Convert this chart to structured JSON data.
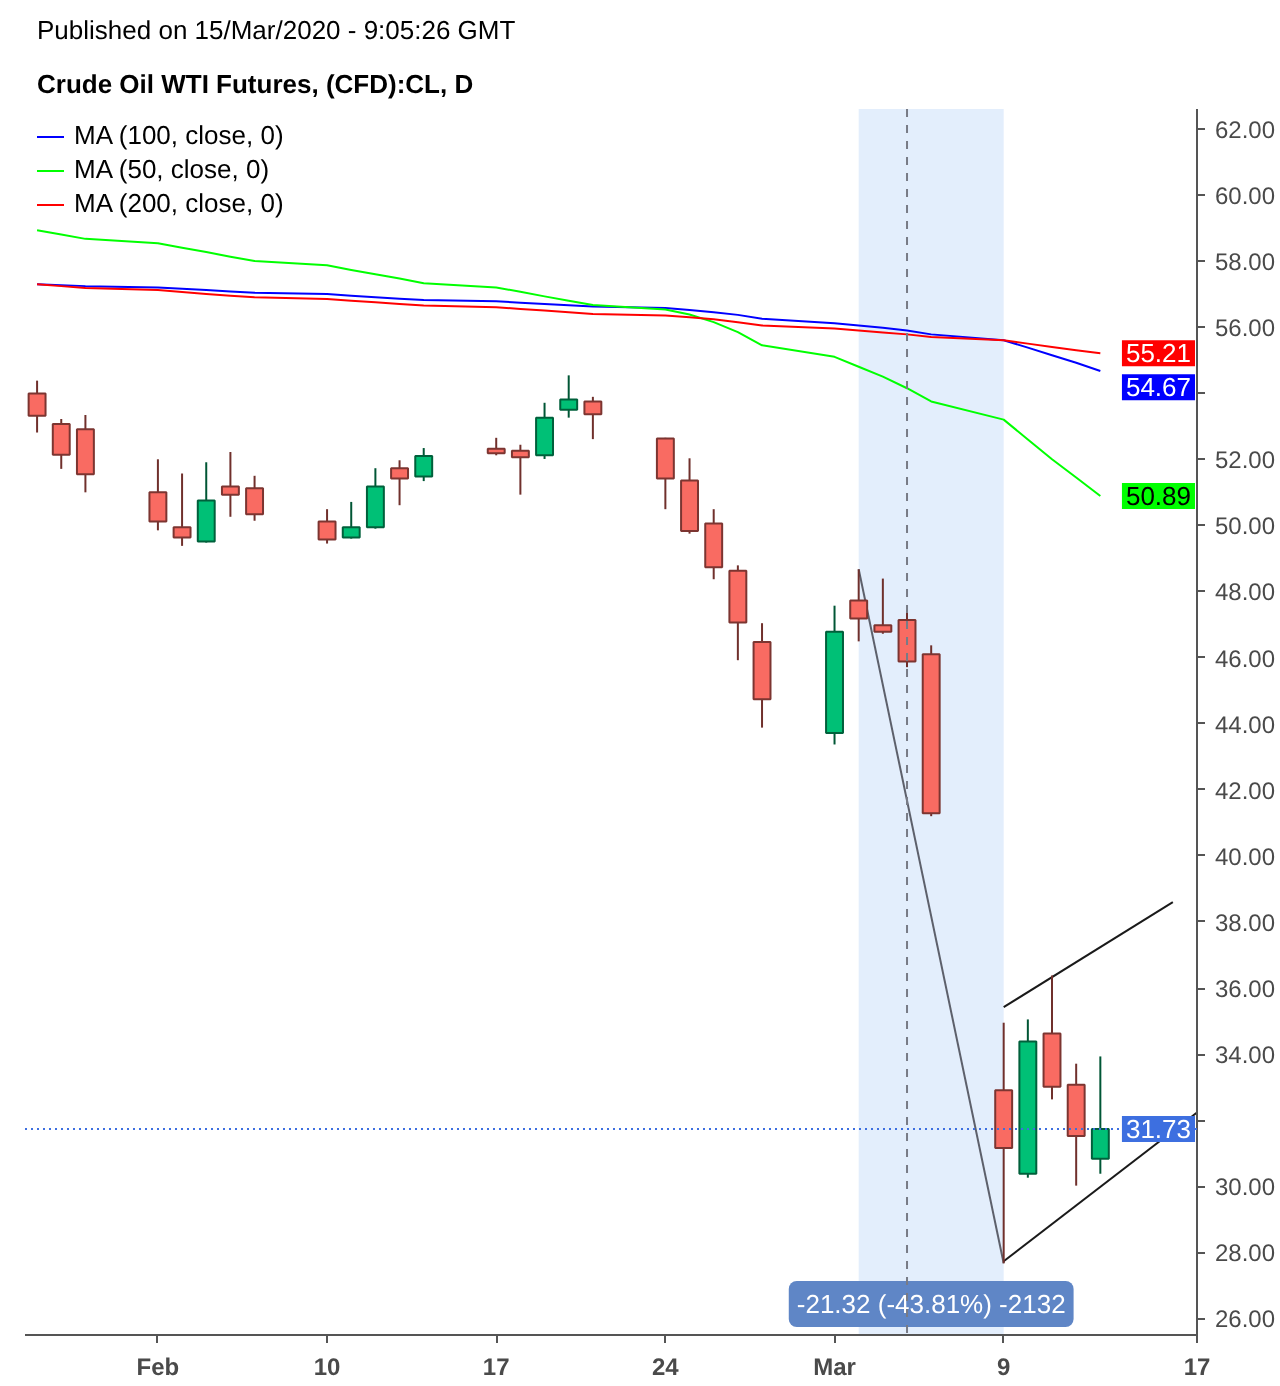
{
  "chart_data": {
    "type": "candlestick",
    "title": "Crude Oil WTI Futures, (CFD):CL, D",
    "annotations": [
      "Published on 15/Mar/2020 - 9:05:26 GMT"
    ],
    "x": [
      "2020-01-29",
      "2020-01-30",
      "2020-01-31",
      "2020-02-03",
      "2020-02-04",
      "2020-02-05",
      "2020-02-06",
      "2020-02-07",
      "2020-02-10",
      "2020-02-11",
      "2020-02-12",
      "2020-02-13",
      "2020-02-14",
      "2020-02-17",
      "2020-02-18",
      "2020-02-19",
      "2020-02-20",
      "2020-02-21",
      "2020-02-24",
      "2020-02-25",
      "2020-02-26",
      "2020-02-27",
      "2020-02-28",
      "2020-03-02",
      "2020-03-03",
      "2020-03-04",
      "2020-03-05",
      "2020-03-06",
      "2020-03-09",
      "2020-03-10",
      "2020-03-11",
      "2020-03-12",
      "2020-03-13"
    ],
    "ohlc": [
      [
        53.99,
        54.38,
        52.81,
        53.32
      ],
      [
        53.07,
        53.22,
        51.71,
        52.14
      ],
      [
        52.91,
        53.34,
        51.0,
        51.55
      ],
      [
        51.0,
        52.0,
        49.85,
        50.12
      ],
      [
        49.94,
        51.57,
        49.38,
        49.63
      ],
      [
        49.51,
        51.91,
        49.48,
        50.75
      ],
      [
        51.18,
        52.22,
        50.26,
        50.93
      ],
      [
        51.12,
        51.5,
        50.14,
        50.34
      ],
      [
        50.12,
        50.49,
        49.45,
        49.57
      ],
      [
        49.63,
        50.71,
        49.6,
        49.94
      ],
      [
        49.94,
        51.73,
        49.9,
        51.18
      ],
      [
        51.73,
        51.97,
        50.61,
        51.42
      ],
      [
        51.48,
        52.34,
        51.34,
        52.1
      ],
      [
        52.32,
        52.65,
        52.12,
        52.18
      ],
      [
        52.26,
        52.44,
        50.93,
        52.06
      ],
      [
        52.12,
        53.71,
        52.01,
        53.26
      ],
      [
        53.5,
        54.54,
        53.26,
        53.81
      ],
      [
        53.75,
        53.89,
        52.61,
        53.36
      ],
      [
        52.63,
        52.65,
        50.49,
        51.42
      ],
      [
        51.36,
        52.03,
        49.75,
        49.83
      ],
      [
        50.06,
        50.49,
        48.37,
        48.73
      ],
      [
        48.63,
        48.79,
        45.92,
        47.06
      ],
      [
        46.47,
        47.04,
        43.88,
        44.74
      ],
      [
        43.72,
        47.57,
        43.37,
        46.78
      ],
      [
        47.73,
        48.67,
        46.49,
        47.18
      ],
      [
        46.98,
        48.39,
        46.72,
        46.78
      ],
      [
        47.14,
        47.45,
        45.71,
        45.88
      ],
      [
        46.1,
        46.37,
        41.2,
        41.29
      ],
      [
        32.91,
        34.95,
        27.67,
        31.16
      ],
      [
        30.38,
        35.05,
        30.26,
        34.38
      ],
      [
        34.62,
        36.38,
        32.63,
        33.01
      ],
      [
        33.07,
        33.71,
        30.02,
        31.52
      ],
      [
        30.83,
        33.93,
        30.38,
        31.73
      ]
    ],
    "colors": [
      "#f96b62",
      "#f96b62",
      "#f96b62",
      "#f96b62",
      "#f96b62",
      "#00c076",
      "#f96b62",
      "#f96b62",
      "#f96b62",
      "#00c076",
      "#00c076",
      "#f96b62",
      "#00c076",
      "#f96b62",
      "#f96b62",
      "#00c076",
      "#00c076",
      "#f96b62",
      "#f96b62",
      "#f96b62",
      "#f96b62",
      "#f96b62",
      "#f96b62",
      "#00c076",
      "#f96b62",
      "#f96b62",
      "#f96b62",
      "#f96b62",
      "#f96b62",
      "#00c076",
      "#f96b62",
      "#f96b62",
      "#00c076"
    ],
    "series": [
      {
        "type": "line",
        "name": "MA (100, close, 0)",
        "color": "#0000ff",
        "values": [
          57.3,
          57.27,
          57.24,
          57.2,
          57.16,
          57.12,
          57.08,
          57.04,
          57.0,
          56.95,
          56.9,
          56.86,
          56.82,
          56.78,
          56.74,
          56.7,
          56.66,
          56.62,
          56.58,
          56.52,
          56.45,
          56.37,
          56.25,
          56.12,
          56.05,
          55.98,
          55.9,
          55.78,
          55.6,
          55.38,
          55.15,
          54.92,
          54.67
        ],
        "value_labels": [
          null,
          null,
          null,
          null,
          null,
          null,
          null,
          null,
          null,
          null,
          null,
          null,
          null,
          null,
          null,
          null,
          null,
          null,
          null,
          null,
          null,
          null,
          null,
          null,
          null,
          null,
          null,
          null,
          null,
          null,
          null,
          null,
          "54.67"
        ]
      },
      {
        "type": "line",
        "name": "MA (50, close, 0)",
        "color": "#00ff00",
        "values": [
          58.93,
          58.8,
          58.67,
          58.54,
          58.4,
          58.27,
          58.13,
          58.0,
          57.87,
          57.73,
          57.6,
          57.47,
          57.33,
          57.2,
          57.07,
          56.93,
          56.8,
          56.67,
          56.53,
          56.38,
          56.15,
          55.85,
          55.45,
          55.1,
          54.8,
          54.5,
          54.15,
          53.75,
          53.2,
          52.6,
          52.0,
          51.45,
          50.89
        ],
        "value_labels": [
          null,
          null,
          null,
          null,
          null,
          null,
          null,
          null,
          null,
          null,
          null,
          null,
          null,
          null,
          null,
          null,
          null,
          null,
          null,
          null,
          null,
          null,
          null,
          null,
          null,
          null,
          null,
          null,
          null,
          null,
          null,
          null,
          "50.89"
        ]
      },
      {
        "type": "line",
        "name": "MA (200, close, 0)",
        "color": "#ff0000",
        "values": [
          57.3,
          57.24,
          57.18,
          57.12,
          57.06,
          57.0,
          56.95,
          56.9,
          56.85,
          56.8,
          56.75,
          56.7,
          56.65,
          56.6,
          56.55,
          56.5,
          56.45,
          56.4,
          56.35,
          56.3,
          56.24,
          56.15,
          56.05,
          55.96,
          55.9,
          55.84,
          55.78,
          55.7,
          55.6,
          55.5,
          55.4,
          55.3,
          55.21
        ],
        "value_labels": [
          null,
          null,
          null,
          null,
          null,
          null,
          null,
          null,
          null,
          null,
          null,
          null,
          null,
          null,
          null,
          null,
          null,
          null,
          null,
          null,
          null,
          null,
          null,
          null,
          null,
          null,
          null,
          null,
          null,
          null,
          null,
          null,
          "55.21"
        ]
      },
      {
        "type": "line",
        "x": [
          "2020-03-03",
          "2020-03-09"
        ],
        "values": [
          48.67,
          27.67
        ],
        "color": "#5d606b"
      },
      {
        "type": "line",
        "x": [
          "2020-03-09",
          "2020-03-17"
        ],
        "values": [
          27.73,
          32.23
        ],
        "color": "#1a1a1a"
      },
      {
        "type": "line",
        "x": [
          "2020-03-09",
          "2020-03-16"
        ],
        "values": [
          35.42,
          38.6
        ],
        "color": "#1a1a1a"
      }
    ],
    "bands": [
      {
        "axis": "x",
        "from": "2020-03-03",
        "to": "2020-03-09",
        "label": "-21.32 (-43.81%) -2132",
        "color": "#e3eefc"
      }
    ],
    "ref_lines": [
      {
        "axis": "y",
        "value": 31.73,
        "label": "31.73",
        "color": "#3d6fe0",
        "line_style": "dotted"
      },
      {
        "axis": "x",
        "value": "2020-03-05",
        "color": "#787b86",
        "line_style": "dashed"
      }
    ],
    "xlim": [
      "2020-01-28T12:00",
      "2020-03-17"
    ],
    "xticks": [
      {
        "value": "2020-02-03",
        "label": "Feb"
      },
      {
        "value": "2020-02-10",
        "label": "10"
      },
      {
        "value": "2020-02-17",
        "label": "17"
      },
      {
        "value": "2020-02-24",
        "label": "24"
      },
      {
        "value": "2020-03-02",
        "label": "Mar"
      },
      {
        "value": "2020-03-09",
        "label": "9"
      },
      {
        "value": "2020-03-17",
        "label": "17"
      }
    ],
    "ylim": [
      25.5,
      62.6
    ],
    "yticks": [
      {
        "value": 26,
        "label": "26.00"
      },
      {
        "value": 28,
        "label": "28.00"
      },
      {
        "value": 30,
        "label": "30.00"
      },
      {
        "value": 32,
        "label": null
      },
      {
        "value": 34,
        "label": "34.00"
      },
      {
        "value": 36,
        "label": "36.00"
      },
      {
        "value": 38,
        "label": "38.00"
      },
      {
        "value": 40,
        "label": "40.00"
      },
      {
        "value": 42,
        "label": "42.00"
      },
      {
        "value": 44,
        "label": "44.00"
      },
      {
        "value": 46,
        "label": "46.00"
      },
      {
        "value": 48,
        "label": "48.00"
      },
      {
        "value": 50,
        "label": "50.00"
      },
      {
        "value": 52,
        "label": "52.00"
      },
      {
        "value": 54,
        "label": null
      },
      {
        "value": 56,
        "label": "56.00"
      },
      {
        "value": 58,
        "label": "58.00"
      },
      {
        "value": 60,
        "label": "60.00"
      },
      {
        "value": 62,
        "label": "62.00"
      }
    ],
    "grid": false,
    "legend": "top left"
  }
}
